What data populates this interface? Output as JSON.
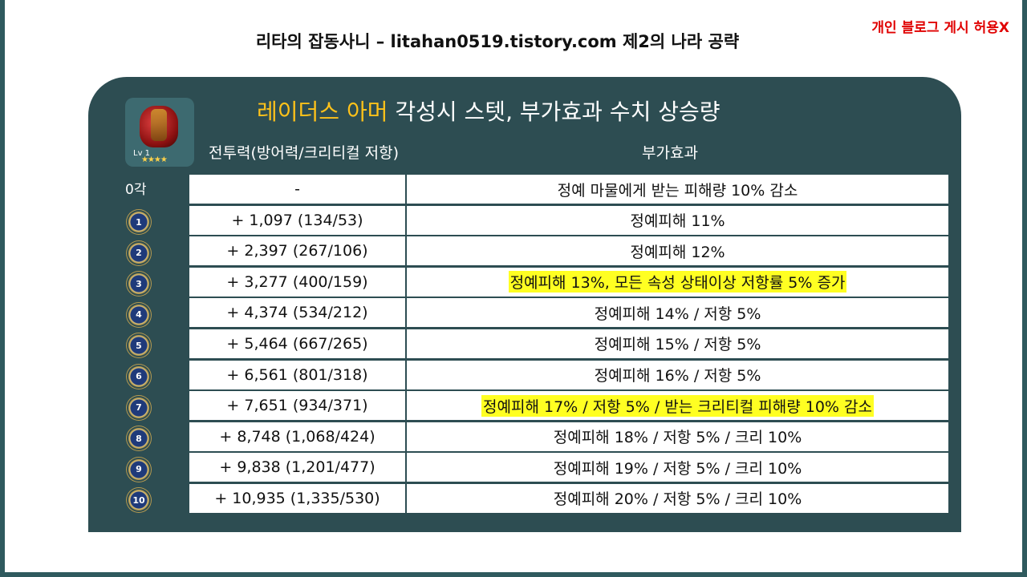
{
  "header": {
    "title": "리타의 잡동사니 – litahan0519.tistory.com 제2의 나라 공략",
    "notice": "개인 블로그 게시 허용X"
  },
  "panel": {
    "title_accent": "레이더스 아머",
    "title_rest": " 각성시 스텟, 부가효과 수치 상승량",
    "item": {
      "level_label": "Lv 1",
      "stars": "★★★★"
    },
    "columns": {
      "stat": "전투력(방어력/크리티컬 저항)",
      "effect": "부가효과"
    },
    "row0_label": "0각",
    "rows": [
      {
        "stat": "-",
        "effect": "정예 마물에게 받는 피해량 10% 감소",
        "highlight": false
      },
      {
        "stat": "+ 1,097 (134/53)",
        "effect": "정예피해 11%",
        "highlight": false,
        "badge": "1"
      },
      {
        "stat": "+ 2,397 (267/106)",
        "effect": "정예피해 12%",
        "highlight": false,
        "badge": "2"
      },
      {
        "stat": "+ 3,277 (400/159)",
        "effect": "정예피해 13%, 모든 속성 상태이상 저항률 5% 증가",
        "highlight": true,
        "badge": "3"
      },
      {
        "stat": "+ 4,374 (534/212)",
        "effect": "정예피해 14% / 저항 5%",
        "highlight": false,
        "badge": "4"
      },
      {
        "stat": "+ 5,464 (667/265)",
        "effect": "정예피해 15% / 저항 5%",
        "highlight": false,
        "badge": "5"
      },
      {
        "stat": "+ 6,561 (801/318)",
        "effect": "정예피해 16% / 저항 5%",
        "highlight": false,
        "badge": "6"
      },
      {
        "stat": "+ 7,651 (934/371)",
        "effect": "정예피해 17% / 저항 5% / 받는 크리티컬 피해량 10% 감소",
        "highlight": true,
        "badge": "7"
      },
      {
        "stat": "+ 8,748 (1,068/424)",
        "effect": "정예피해 18% / 저항 5% / 크리 10%",
        "highlight": false,
        "badge": "8"
      },
      {
        "stat": "+ 9,838 (1,201/477)",
        "effect": "정예피해 19% / 저항 5% / 크리 10%",
        "highlight": false,
        "badge": "9"
      },
      {
        "stat": "+ 10,935 (1,335/530)",
        "effect": "정예피해 20% / 저항 5% / 크리 10%",
        "highlight": false,
        "badge": "10"
      }
    ]
  }
}
